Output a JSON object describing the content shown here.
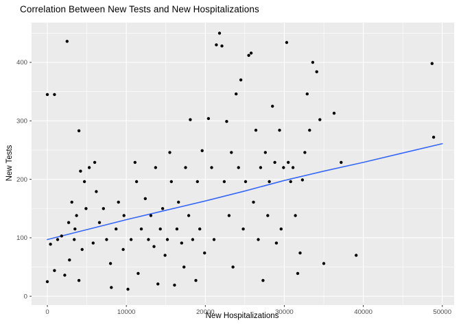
{
  "chart_data": {
    "type": "scatter",
    "title": "Correlation Between New Tests and New Hospitalizations",
    "xlabel": "New Hospitalizations",
    "ylabel": "New Tests",
    "xlim": [
      0,
      50000
    ],
    "ylim": [
      0,
      450
    ],
    "x_domain": [
      -2000,
      51500
    ],
    "y_domain": [
      -15,
      468
    ],
    "x_ticks": [
      0,
      10000,
      20000,
      30000,
      40000,
      50000
    ],
    "y_ticks": [
      0,
      100,
      200,
      300,
      400
    ],
    "x_minor": [
      5000,
      15000,
      25000,
      35000,
      45000
    ],
    "y_minor": [
      50,
      150,
      250,
      350,
      450
    ],
    "grid": "on",
    "legend": "none",
    "colors": {
      "panel_bg": "#EBEBEB",
      "grid": "#FFFFFF",
      "point": "#000000",
      "trend": "#3366FF",
      "tick_label": "#4D4D4D",
      "tick_mark": "#333333",
      "axis_title": "#000000"
    },
    "trend_line": {
      "x": [
        0,
        5000,
        10000,
        15000,
        20000,
        25000,
        30000,
        35000,
        40000,
        45000,
        50000
      ],
      "y": [
        97,
        114,
        131,
        147,
        163,
        180,
        198,
        214,
        229,
        245,
        261
      ]
    },
    "points": [
      [
        0,
        345
      ],
      [
        900,
        345
      ],
      [
        2500,
        436
      ],
      [
        4000,
        283
      ],
      [
        1300,
        97
      ],
      [
        400,
        89
      ],
      [
        0,
        25
      ],
      [
        900,
        44
      ],
      [
        2200,
        36
      ],
      [
        2800,
        62
      ],
      [
        1800,
        103
      ],
      [
        3500,
        115
      ],
      [
        3400,
        97
      ],
      [
        4400,
        80
      ],
      [
        4900,
        150
      ],
      [
        3700,
        138
      ],
      [
        3100,
        161
      ],
      [
        4200,
        214
      ],
      [
        4700,
        196
      ],
      [
        2700,
        126
      ],
      [
        4000,
        27
      ],
      [
        5300,
        220
      ],
      [
        6200,
        179
      ],
      [
        6600,
        126
      ],
      [
        5800,
        91
      ],
      [
        7100,
        150
      ],
      [
        6000,
        229
      ],
      [
        7500,
        97
      ],
      [
        8000,
        56
      ],
      [
        8100,
        15
      ],
      [
        8700,
        115
      ],
      [
        9000,
        161
      ],
      [
        9600,
        80
      ],
      [
        9700,
        138
      ],
      [
        10200,
        12
      ],
      [
        10600,
        97
      ],
      [
        11100,
        229
      ],
      [
        11300,
        196
      ],
      [
        11500,
        39
      ],
      [
        11900,
        115
      ],
      [
        12400,
        167
      ],
      [
        12800,
        97
      ],
      [
        13100,
        138
      ],
      [
        13500,
        85
      ],
      [
        13700,
        220
      ],
      [
        14000,
        21
      ],
      [
        14300,
        115
      ],
      [
        14600,
        150
      ],
      [
        14900,
        70
      ],
      [
        15200,
        97
      ],
      [
        15500,
        246
      ],
      [
        15700,
        196
      ],
      [
        16100,
        19
      ],
      [
        16400,
        115
      ],
      [
        16600,
        161
      ],
      [
        17000,
        91
      ],
      [
        17300,
        50
      ],
      [
        17500,
        220
      ],
      [
        17900,
        138
      ],
      [
        18100,
        302
      ],
      [
        18400,
        97
      ],
      [
        18800,
        27
      ],
      [
        19000,
        196
      ],
      [
        19300,
        115
      ],
      [
        19600,
        249
      ],
      [
        19900,
        74
      ],
      [
        20400,
        304
      ],
      [
        20800,
        220
      ],
      [
        21100,
        97
      ],
      [
        21400,
        430
      ],
      [
        21800,
        450
      ],
      [
        22100,
        428
      ],
      [
        22400,
        196
      ],
      [
        22700,
        299
      ],
      [
        23000,
        138
      ],
      [
        23300,
        246
      ],
      [
        23500,
        50
      ],
      [
        23900,
        346
      ],
      [
        24200,
        220
      ],
      [
        24500,
        370
      ],
      [
        24800,
        115
      ],
      [
        25100,
        196
      ],
      [
        25500,
        412
      ],
      [
        25800,
        416
      ],
      [
        26100,
        161
      ],
      [
        26400,
        284
      ],
      [
        26700,
        97
      ],
      [
        27000,
        220
      ],
      [
        27300,
        27
      ],
      [
        27600,
        246
      ],
      [
        27900,
        138
      ],
      [
        28100,
        196
      ],
      [
        28500,
        325
      ],
      [
        28800,
        229
      ],
      [
        29000,
        91
      ],
      [
        29400,
        284
      ],
      [
        29600,
        115
      ],
      [
        29900,
        220
      ],
      [
        30300,
        434
      ],
      [
        30500,
        229
      ],
      [
        30800,
        196
      ],
      [
        31100,
        220
      ],
      [
        31400,
        138
      ],
      [
        31700,
        39
      ],
      [
        32000,
        74
      ],
      [
        32300,
        199
      ],
      [
        32600,
        246
      ],
      [
        32900,
        346
      ],
      [
        33200,
        284
      ],
      [
        33600,
        400
      ],
      [
        34100,
        384
      ],
      [
        34500,
        302
      ],
      [
        35000,
        56
      ],
      [
        36300,
        313
      ],
      [
        37200,
        229
      ],
      [
        39100,
        70
      ],
      [
        48700,
        398
      ],
      [
        48900,
        272
      ]
    ]
  }
}
